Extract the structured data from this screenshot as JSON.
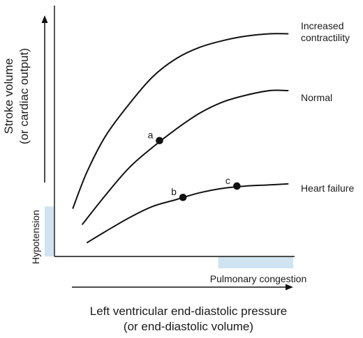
{
  "chart_data": {
    "type": "line",
    "xlabel": [
      "Left ventricular end-diastolic pressure",
      "(or end-diastolic volume)"
    ],
    "ylabel": [
      "Stroke volume",
      "(or cardiac output)"
    ],
    "xlim": [
      0,
      100
    ],
    "ylim": [
      0,
      100
    ],
    "grid": false,
    "series": [
      {
        "name": [
          "Increased",
          "contractility"
        ],
        "x": [
          6,
          12,
          20,
          30,
          40,
          50,
          60,
          70,
          80,
          90,
          98
        ],
        "y": [
          21,
          37,
          53,
          67,
          79,
          87,
          92,
          95,
          97,
          98,
          98
        ]
      },
      {
        "name": [
          "Normal"
        ],
        "x": [
          10,
          20,
          30,
          40,
          50,
          60,
          70,
          80,
          90,
          98
        ],
        "y": [
          14,
          27,
          39,
          48,
          56,
          63,
          68,
          71,
          73,
          73
        ]
      },
      {
        "name": [
          "Heart failure"
        ],
        "x": [
          12,
          20,
          30,
          40,
          50,
          60,
          70,
          80,
          90,
          98
        ],
        "y": [
          6,
          11,
          17,
          22,
          25,
          28,
          30,
          31,
          31.5,
          32
        ]
      }
    ],
    "points": [
      {
        "label": "a",
        "series": 1,
        "x": 43,
        "y": 51
      },
      {
        "label": "b",
        "series": 2,
        "x": 53,
        "y": 26
      },
      {
        "label": "c",
        "series": 2,
        "x": 76,
        "y": 31
      }
    ],
    "regions": [
      {
        "label": "Hypotension",
        "axis": "y",
        "range": [
          0,
          22
        ],
        "color": "#cfe3f0",
        "label_color": "#1f77a8"
      },
      {
        "label": "Pulmonary congestion",
        "axis": "x",
        "range": [
          68,
          100
        ],
        "color": "#cfe3f0",
        "label_color": "#1f77a8"
      }
    ],
    "colors": {
      "curve": "#111111",
      "axis": "#111111"
    }
  }
}
